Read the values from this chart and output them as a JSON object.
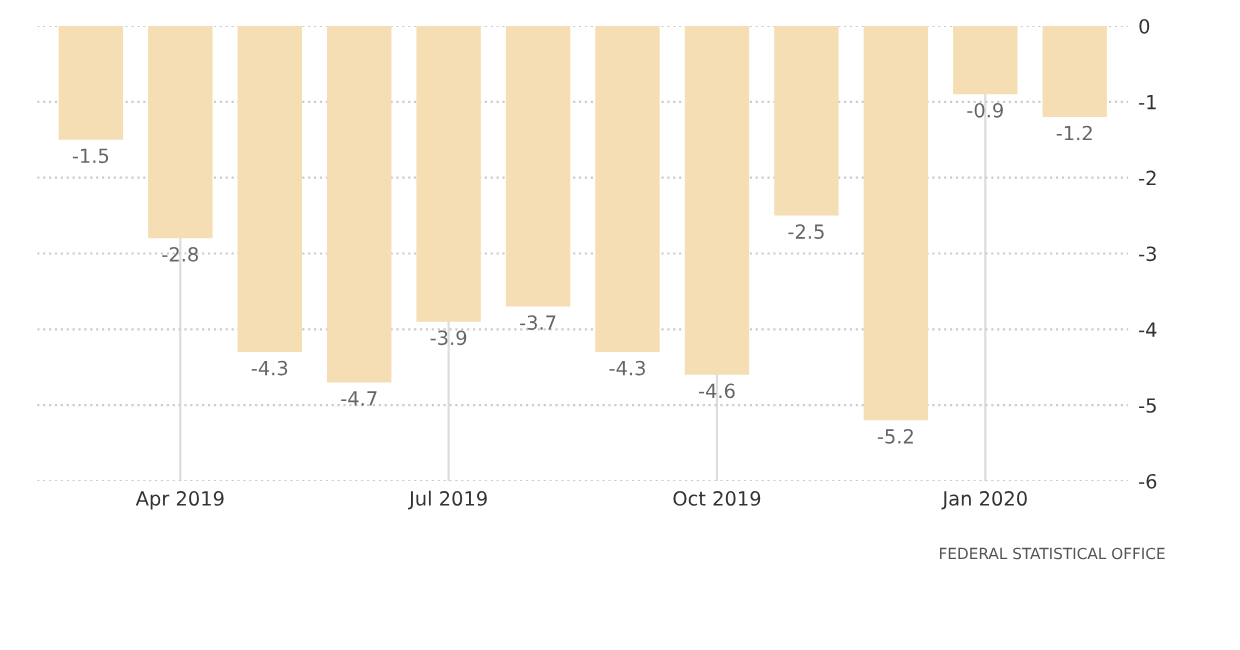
{
  "chart_data": {
    "type": "bar",
    "categories": [
      null,
      "Apr 2019",
      null,
      null,
      "Jul 2019",
      null,
      null,
      "Oct 2019",
      null,
      null,
      "Jan 2020",
      null
    ],
    "values": [
      -1.5,
      -2.8,
      -4.3,
      -4.7,
      -3.9,
      -3.7,
      -4.3,
      -4.6,
      -2.5,
      -5.2,
      -0.9,
      -1.2
    ],
    "color": "#f5deb3",
    "ylim": [
      -6,
      0
    ],
    "yticks": [
      -6,
      -5,
      -4,
      -3,
      -2,
      -1,
      0
    ],
    "grid": true,
    "data_labels": true,
    "annotations": [
      "FEDERAL STATISTICAL OFFICE"
    ]
  }
}
